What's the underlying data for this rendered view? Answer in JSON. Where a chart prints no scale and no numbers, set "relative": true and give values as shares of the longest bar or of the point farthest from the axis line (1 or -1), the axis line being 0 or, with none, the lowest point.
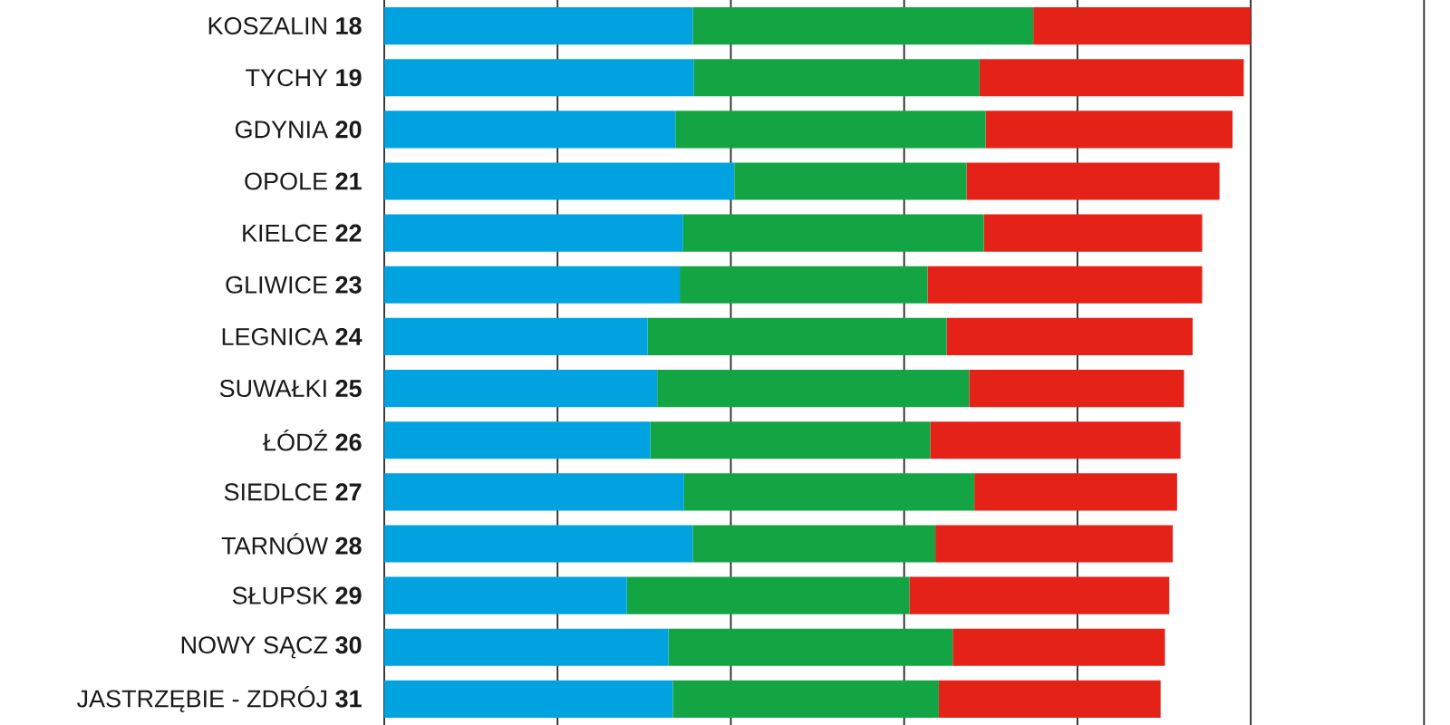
{
  "chart_data": {
    "type": "bar",
    "orientation": "horizontal",
    "stacked": true,
    "relative": true,
    "grid": "x",
    "categories": [
      "KOSZALIN **18**",
      "TYCHY **19**",
      "GDYNIA **20**",
      "OPOLE **21**",
      "KIELCE **22**",
      "GLIWICE **23**",
      "LEGNICA **24**",
      "SUWAŁKI **25**",
      "ŁÓDŹ **26**",
      "SIEDLCE **27**",
      "TARNÓW **28**",
      "SŁUPSK **29**",
      "NOWY SĄCZ **30**",
      "JASTRZĘBIE - ZDRÓJ **31**"
    ],
    "series": [
      {
        "color": "#00a3e0",
        "values": [
          0.356,
          0.357,
          0.336,
          0.404,
          0.345,
          0.341,
          0.304,
          0.315,
          0.307,
          0.346,
          0.356,
          0.28,
          0.328,
          0.333
        ]
      },
      {
        "color": "#13a544",
        "values": [
          0.393,
          0.33,
          0.358,
          0.268,
          0.347,
          0.286,
          0.345,
          0.36,
          0.323,
          0.335,
          0.28,
          0.326,
          0.328,
          0.307
        ]
      },
      {
        "color": "#e52218",
        "values": [
          0.251,
          0.305,
          0.285,
          0.292,
          0.252,
          0.317,
          0.284,
          0.248,
          0.289,
          0.234,
          0.274,
          0.3,
          0.245,
          0.256
        ]
      }
    ]
  }
}
